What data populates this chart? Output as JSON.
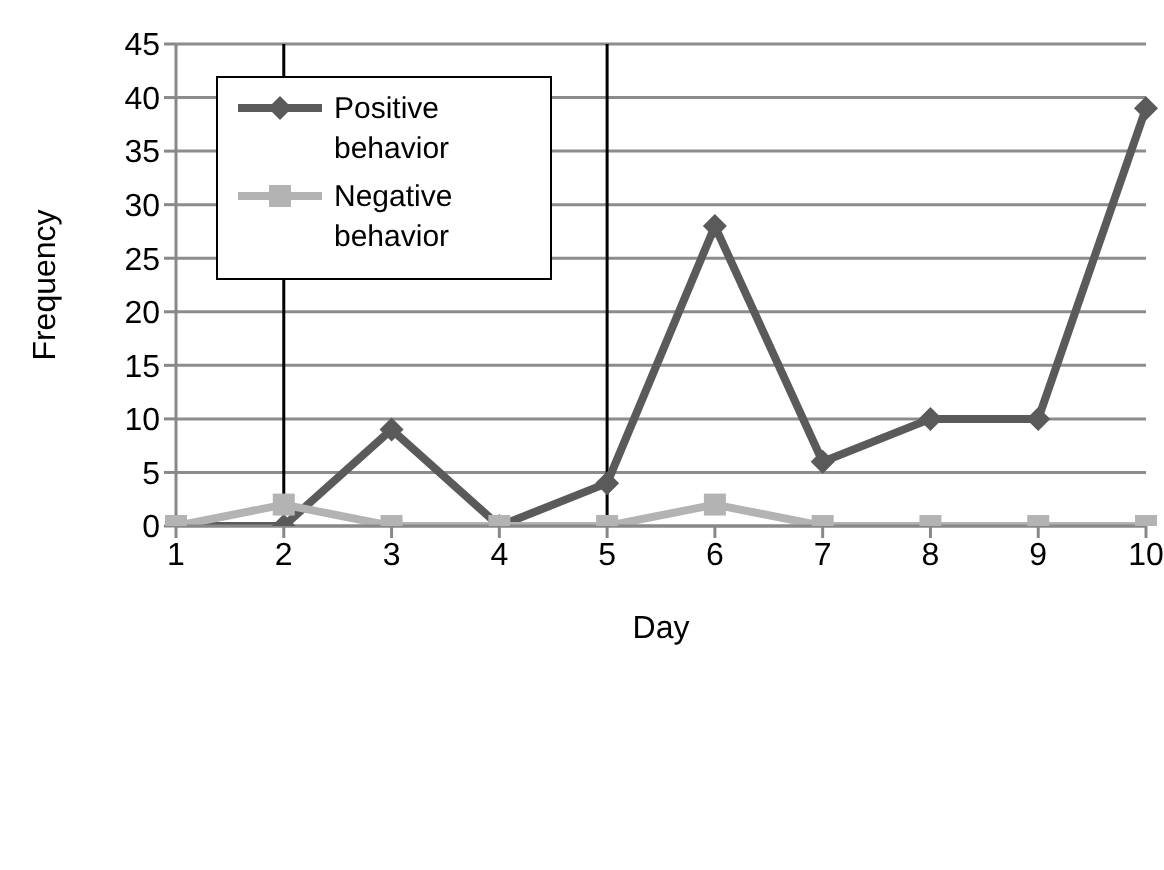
{
  "chart_data": {
    "type": "line",
    "xlabel": "Day",
    "ylabel": "Frequency",
    "categories": [
      "1",
      "2",
      "3",
      "4",
      "5",
      "6",
      "7",
      "8",
      "9",
      "10"
    ],
    "series": [
      {
        "name": "Positive behavior",
        "color": "#5a5a5a",
        "marker": "diamond",
        "values": [
          0,
          0,
          9,
          0,
          4,
          28,
          6,
          10,
          10,
          39
        ]
      },
      {
        "name": "Negative behavior",
        "color": "#b3b3b3",
        "marker": "square",
        "values": [
          0,
          2,
          0,
          0,
          0,
          2,
          0,
          0,
          0,
          0
        ]
      }
    ],
    "ylim": [
      0,
      45
    ],
    "yticks": [
      0,
      5,
      10,
      15,
      20,
      25,
      30,
      35,
      40,
      45
    ],
    "grid": "y",
    "legend": "top left",
    "ref_lines": [
      {
        "axis": "x",
        "value": "2",
        "color": "#000000"
      },
      {
        "axis": "x",
        "value": "5",
        "color": "#000000"
      }
    ]
  }
}
